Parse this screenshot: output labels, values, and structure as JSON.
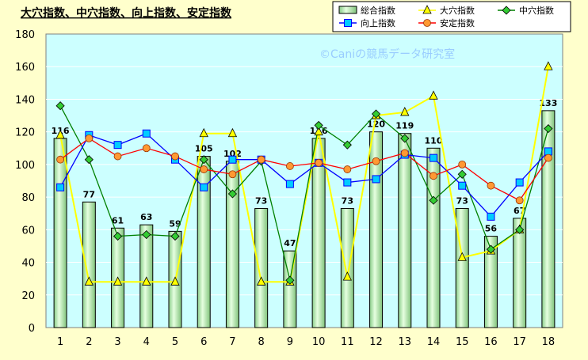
{
  "chart_data": {
    "type": "bar",
    "title": "大穴指数、中穴指数、向上指数、安定指数",
    "watermark": "©Caniの競馬データ研究室",
    "categories": [
      "1",
      "2",
      "3",
      "4",
      "5",
      "6",
      "7",
      "8",
      "9",
      "10",
      "11",
      "12",
      "13",
      "14",
      "15",
      "16",
      "17",
      "18"
    ],
    "ylim": [
      0,
      180
    ],
    "yticks": [
      0,
      20,
      40,
      60,
      80,
      100,
      120,
      140,
      160,
      180
    ],
    "grid": true,
    "legend_position": "top-right",
    "bar_series": {
      "name": "総合指数",
      "values": [
        116,
        77,
        61,
        63,
        59,
        105,
        102,
        73,
        47,
        116,
        73,
        120,
        119,
        110,
        73,
        56,
        67,
        133
      ]
    },
    "line_series": [
      {
        "name": "大穴指数",
        "color": "#ffff00",
        "marker": "triangle",
        "values": [
          118,
          28,
          28,
          28,
          28,
          119,
          119,
          28,
          28,
          120,
          31,
          130,
          132,
          142,
          43,
          47,
          60,
          160
        ]
      },
      {
        "name": "中穴指数",
        "color": "#008000",
        "marker": "diamond",
        "values": [
          136,
          103,
          56,
          57,
          56,
          103,
          82,
          102,
          29,
          124,
          112,
          131,
          116,
          78,
          94,
          48,
          60,
          122
        ]
      },
      {
        "name": "向上指数",
        "color": "#0000ff",
        "marker": "square",
        "values": [
          86,
          118,
          112,
          119,
          103,
          86,
          103,
          103,
          88,
          101,
          89,
          91,
          106,
          104,
          87,
          68,
          89,
          108
        ]
      },
      {
        "name": "安定指数",
        "color": "#ff0000",
        "marker": "circle",
        "values": [
          103,
          116,
          105,
          110,
          105,
          97,
          94,
          103,
          99,
          101,
          97,
          102,
          107,
          93,
          100,
          87,
          78,
          104
        ]
      }
    ],
    "colors": {
      "background": "#ffffcc",
      "plot_background": "#ccffff",
      "bar_fill": "#b8e6a8",
      "bar_stroke": "#000000",
      "marker_fill_triangle": "#ffff00",
      "marker_fill_diamond": "#33cc33",
      "marker_fill_square": "#00ccff",
      "marker_fill_circle": "#ff9933"
    }
  }
}
